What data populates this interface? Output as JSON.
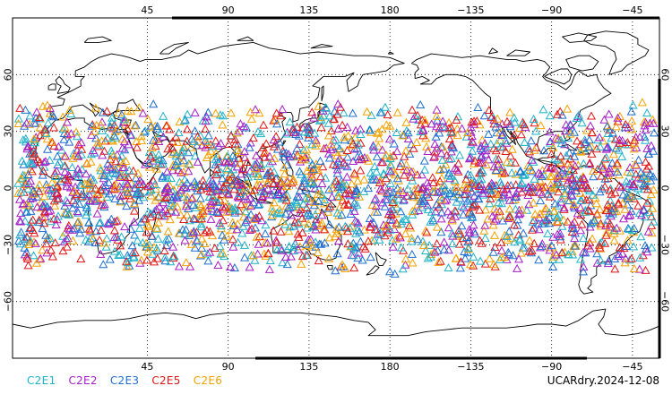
{
  "map": {
    "projection": "equirectangular",
    "central_longitude": 150,
    "lon_range": [
      -30,
      330
    ],
    "lat_range": [
      -90,
      90
    ],
    "lon_ticks": [
      {
        "lon": 45,
        "label": "45"
      },
      {
        "lon": 90,
        "label": "90"
      },
      {
        "lon": 135,
        "label": "135"
      },
      {
        "lon": 180,
        "label": "180"
      },
      {
        "lon": 225,
        "label": "−135"
      },
      {
        "lon": 270,
        "label": "−90"
      },
      {
        "lon": 315,
        "label": "−45"
      }
    ],
    "lat_ticks": [
      {
        "lat": 60,
        "label": "60"
      },
      {
        "lat": 30,
        "label": "30"
      },
      {
        "lat": 0,
        "label": "0"
      },
      {
        "lat": -30,
        "label": "−30"
      },
      {
        "lat": -60,
        "label": "−60"
      }
    ],
    "grid": true,
    "grid_style": "dotted",
    "coastline_color": "#000000"
  },
  "chart_data": {
    "type": "scatter",
    "marker": "open-triangle",
    "observation_lat_band": [
      -46,
      46
    ],
    "series": [
      {
        "name": "C2E1",
        "color": "#1fb3c8"
      },
      {
        "name": "C2E2",
        "color": "#a61fc8"
      },
      {
        "name": "C2E3",
        "color": "#1f6fd0"
      },
      {
        "name": "C2E5",
        "color": "#e01818"
      },
      {
        "name": "C2E6",
        "color": "#f5a200"
      }
    ]
  },
  "legend": [
    {
      "label": "C2E1",
      "color": "#1fb3c8"
    },
    {
      "label": "C2E2",
      "color": "#a61fc8"
    },
    {
      "label": "C2E3",
      "color": "#1f6fd0"
    },
    {
      "label": "C2E5",
      "color": "#e01818"
    },
    {
      "label": "C2E6",
      "color": "#f5a200"
    }
  ],
  "source_label": "UCARdry.2024-12-08"
}
